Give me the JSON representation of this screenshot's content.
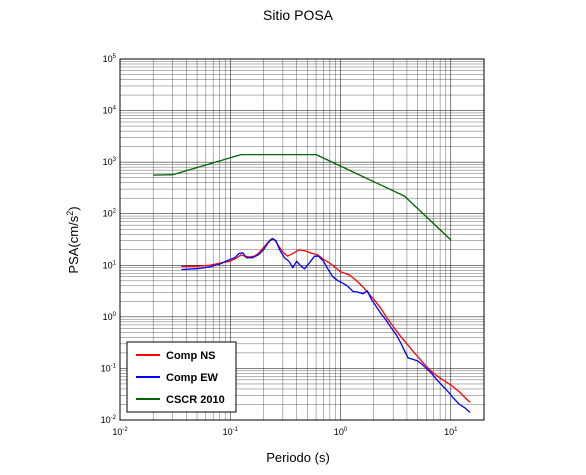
{
  "chart_data": {
    "type": "line",
    "title": "Sitio POSA",
    "xlabel": "Periodo (s)",
    "ylabel": {
      "base": "PSA(cm/s",
      "exp": "2",
      "close": ")"
    },
    "xscale": "log",
    "yscale": "log",
    "xlim": [
      0.01,
      20
    ],
    "ylim": [
      0.01,
      100000
    ],
    "grid": true,
    "legend_position": "bottom-left",
    "x_ticks": [
      {
        "base": "10",
        "exp": "-2",
        "value": 0.01
      },
      {
        "base": "10",
        "exp": "-1",
        "value": 0.1
      },
      {
        "base": "10",
        "exp": "0",
        "value": 1
      },
      {
        "base": "10",
        "exp": "1",
        "value": 10
      }
    ],
    "y_ticks": [
      {
        "base": "10",
        "exp": "-2",
        "value": 0.01
      },
      {
        "base": "10",
        "exp": "-1",
        "value": 0.1
      },
      {
        "base": "10",
        "exp": "0",
        "value": 1
      },
      {
        "base": "10",
        "exp": "1",
        "value": 10
      },
      {
        "base": "10",
        "exp": "2",
        "value": 100
      },
      {
        "base": "10",
        "exp": "3",
        "value": 1000
      },
      {
        "base": "10",
        "exp": "4",
        "value": 10000
      },
      {
        "base": "10",
        "exp": "5",
        "value": 100000
      }
    ],
    "series": [
      {
        "name": "Comp NS",
        "color": "#ff0000",
        "points": [
          [
            0.036,
            9.5
          ],
          [
            0.05,
            9.6
          ],
          [
            0.065,
            10
          ],
          [
            0.08,
            11
          ],
          [
            0.1,
            12
          ],
          [
            0.115,
            14
          ],
          [
            0.125,
            16
          ],
          [
            0.135,
            15
          ],
          [
            0.15,
            14.5
          ],
          [
            0.165,
            15
          ],
          [
            0.18,
            17
          ],
          [
            0.2,
            22
          ],
          [
            0.23,
            31
          ],
          [
            0.25,
            32
          ],
          [
            0.27,
            25
          ],
          [
            0.3,
            18
          ],
          [
            0.33,
            15
          ],
          [
            0.37,
            17
          ],
          [
            0.42,
            20
          ],
          [
            0.48,
            19
          ],
          [
            0.55,
            17
          ],
          [
            0.62,
            16
          ],
          [
            0.7,
            13
          ],
          [
            0.8,
            11
          ],
          [
            0.9,
            9
          ],
          [
            1.0,
            7.5
          ],
          [
            1.2,
            6.5
          ],
          [
            1.4,
            5
          ],
          [
            1.6,
            3.8
          ],
          [
            1.8,
            2.8
          ],
          [
            2.0,
            2.2
          ],
          [
            2.3,
            1.5
          ],
          [
            2.6,
            1.0
          ],
          [
            3.0,
            0.65
          ],
          [
            3.5,
            0.42
          ],
          [
            4.0,
            0.3
          ],
          [
            4.5,
            0.22
          ],
          [
            5.0,
            0.17
          ],
          [
            6.0,
            0.11
          ],
          [
            7.0,
            0.08
          ],
          [
            8.0,
            0.065
          ],
          [
            9.0,
            0.055
          ],
          [
            10.0,
            0.048
          ],
          [
            12.0,
            0.035
          ],
          [
            14.0,
            0.025
          ],
          [
            15.0,
            0.022
          ]
        ]
      },
      {
        "name": "Comp EW",
        "color": "#0000ff",
        "points": [
          [
            0.036,
            8.3
          ],
          [
            0.05,
            8.6
          ],
          [
            0.065,
            9.3
          ],
          [
            0.08,
            10.5
          ],
          [
            0.095,
            12.5
          ],
          [
            0.11,
            14
          ],
          [
            0.12,
            17
          ],
          [
            0.13,
            17.5
          ],
          [
            0.14,
            14
          ],
          [
            0.16,
            14
          ],
          [
            0.18,
            16
          ],
          [
            0.2,
            20
          ],
          [
            0.22,
            27
          ],
          [
            0.24,
            33
          ],
          [
            0.26,
            30
          ],
          [
            0.28,
            20
          ],
          [
            0.31,
            14
          ],
          [
            0.34,
            12
          ],
          [
            0.37,
            9
          ],
          [
            0.4,
            12
          ],
          [
            0.43,
            10
          ],
          [
            0.47,
            8.5
          ],
          [
            0.52,
            11
          ],
          [
            0.58,
            15
          ],
          [
            0.63,
            15
          ],
          [
            0.7,
            12
          ],
          [
            0.78,
            8
          ],
          [
            0.85,
            6
          ],
          [
            0.95,
            5
          ],
          [
            1.05,
            4.5
          ],
          [
            1.15,
            4
          ],
          [
            1.3,
            3.1
          ],
          [
            1.45,
            3.0
          ],
          [
            1.6,
            2.8
          ],
          [
            1.75,
            3.2
          ],
          [
            1.9,
            2.2
          ],
          [
            2.1,
            1.6
          ],
          [
            2.3,
            1.2
          ],
          [
            2.6,
            0.85
          ],
          [
            2.9,
            0.6
          ],
          [
            3.2,
            0.45
          ],
          [
            3.5,
            0.32
          ],
          [
            3.8,
            0.22
          ],
          [
            4.1,
            0.16
          ],
          [
            4.5,
            0.15
          ],
          [
            5.0,
            0.14
          ],
          [
            5.5,
            0.12
          ],
          [
            6.0,
            0.1
          ],
          [
            6.7,
            0.08
          ],
          [
            7.5,
            0.06
          ],
          [
            8.5,
            0.045
          ],
          [
            9.5,
            0.035
          ],
          [
            10.5,
            0.027
          ],
          [
            12.0,
            0.02
          ],
          [
            13.5,
            0.017
          ],
          [
            15.0,
            0.014
          ]
        ]
      },
      {
        "name": "CSCR 2010",
        "color": "#006400",
        "points": [
          [
            0.02,
            560
          ],
          [
            0.03,
            570
          ],
          [
            0.125,
            1400
          ],
          [
            0.6,
            1400
          ],
          [
            3.8,
            220
          ],
          [
            10.0,
            31
          ]
        ]
      }
    ]
  }
}
